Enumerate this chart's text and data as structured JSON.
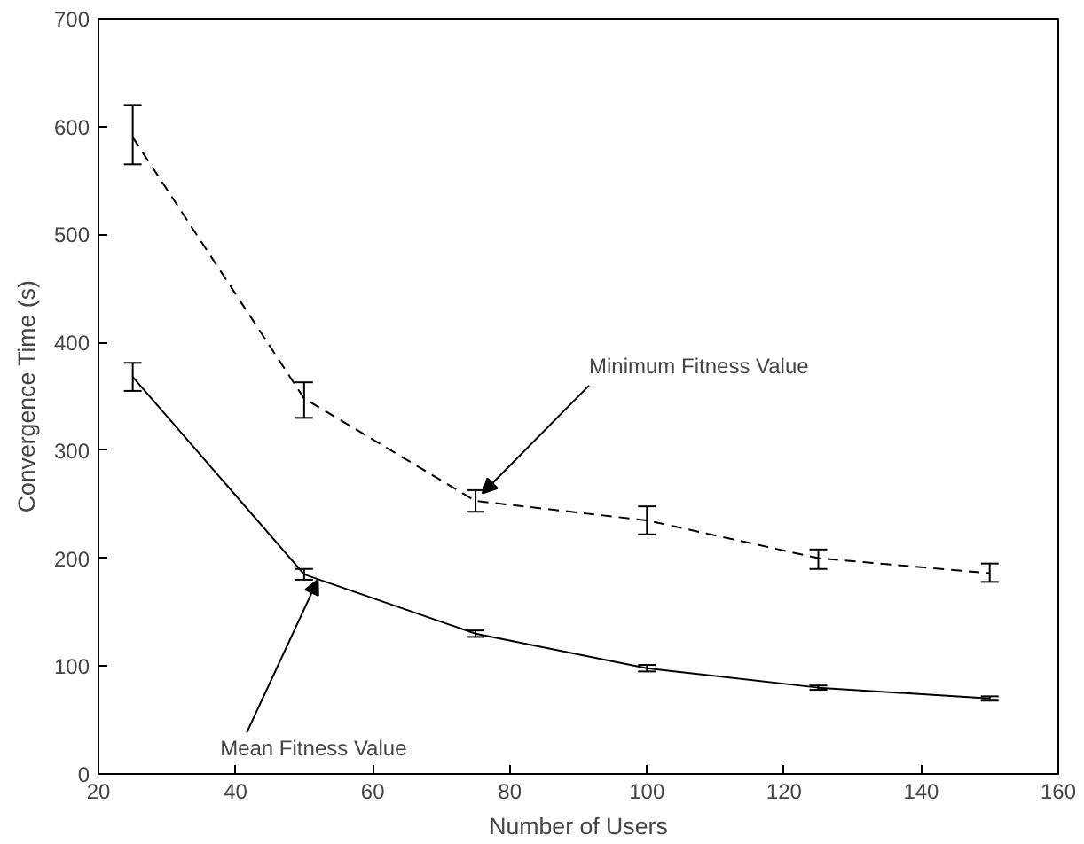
{
  "chart_data": {
    "type": "line",
    "xlabel": "Number of Users",
    "ylabel": "Convergence Time (s)",
    "x": [
      25,
      50,
      75,
      100,
      125,
      150
    ],
    "xlim": [
      20,
      160
    ],
    "xticks": [
      20,
      40,
      60,
      80,
      100,
      120,
      140,
      160
    ],
    "ylim": [
      0,
      700
    ],
    "yticks": [
      0,
      100,
      200,
      300,
      400,
      500,
      600,
      700
    ],
    "grid": false,
    "marker": "none",
    "series": [
      {
        "color": "#000000",
        "line_style": "dashed",
        "values": [
          590,
          348,
          253,
          235,
          200,
          186
        ],
        "errors": [
          [
            565,
            620
          ],
          [
            330,
            363
          ],
          [
            243,
            263
          ],
          [
            222,
            248
          ],
          [
            190,
            208
          ],
          [
            178,
            195
          ]
        ]
      },
      {
        "color": "#000000",
        "line_style": "solid",
        "values": [
          368,
          185,
          130,
          98,
          80,
          70
        ],
        "errors": [
          [
            355,
            381
          ],
          [
            180,
            190
          ],
          [
            127,
            133
          ],
          [
            95,
            101
          ],
          [
            78,
            82
          ],
          [
            68,
            72
          ]
        ]
      }
    ],
    "annotations": [
      {
        "text": "Minimum Fitness Value",
        "x": 76,
        "y": 260
      },
      {
        "text": "Mean Fitness Value",
        "x": 52,
        "y": 180
      }
    ]
  }
}
